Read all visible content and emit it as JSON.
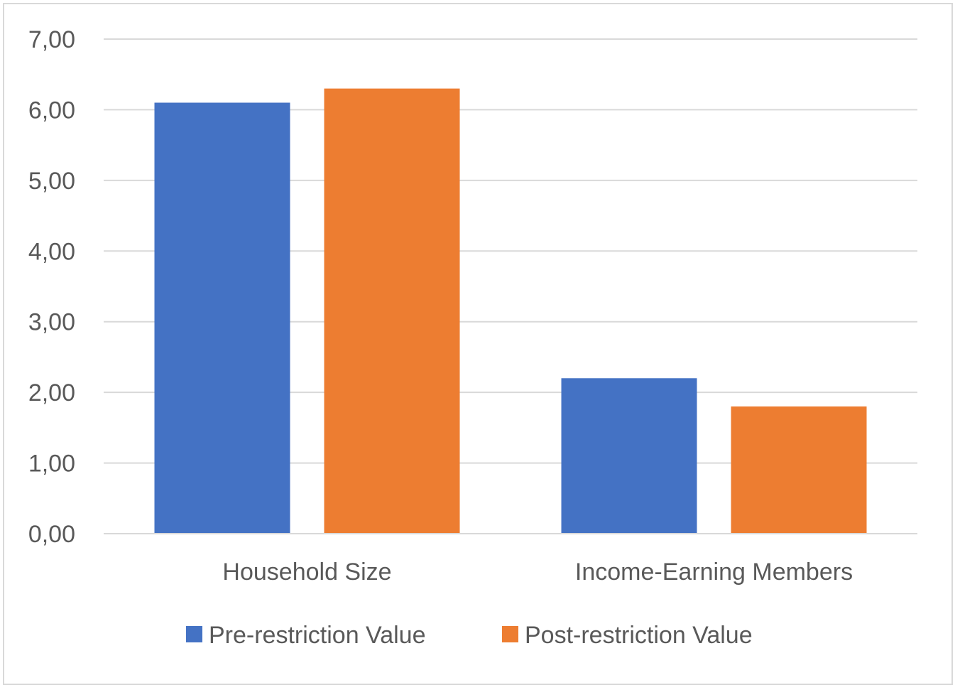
{
  "chart_data": {
    "type": "bar",
    "title": "",
    "xlabel": "",
    "ylabel": "",
    "categories": [
      "Household Size",
      "Income-Earning Members"
    ],
    "series": [
      {
        "name": "Pre-restriction Value",
        "values": [
          6.1,
          2.2
        ],
        "color": "#4472c4"
      },
      {
        "name": "Post-restriction Value",
        "values": [
          6.3,
          1.8
        ],
        "color": "#ed7d31"
      }
    ],
    "ylim": [
      0,
      7
    ],
    "yticks": [
      "0,00",
      "1,00",
      "2,00",
      "3,00",
      "4,00",
      "5,00",
      "6,00",
      "7,00"
    ],
    "grid": true,
    "legend_position": "bottom"
  }
}
